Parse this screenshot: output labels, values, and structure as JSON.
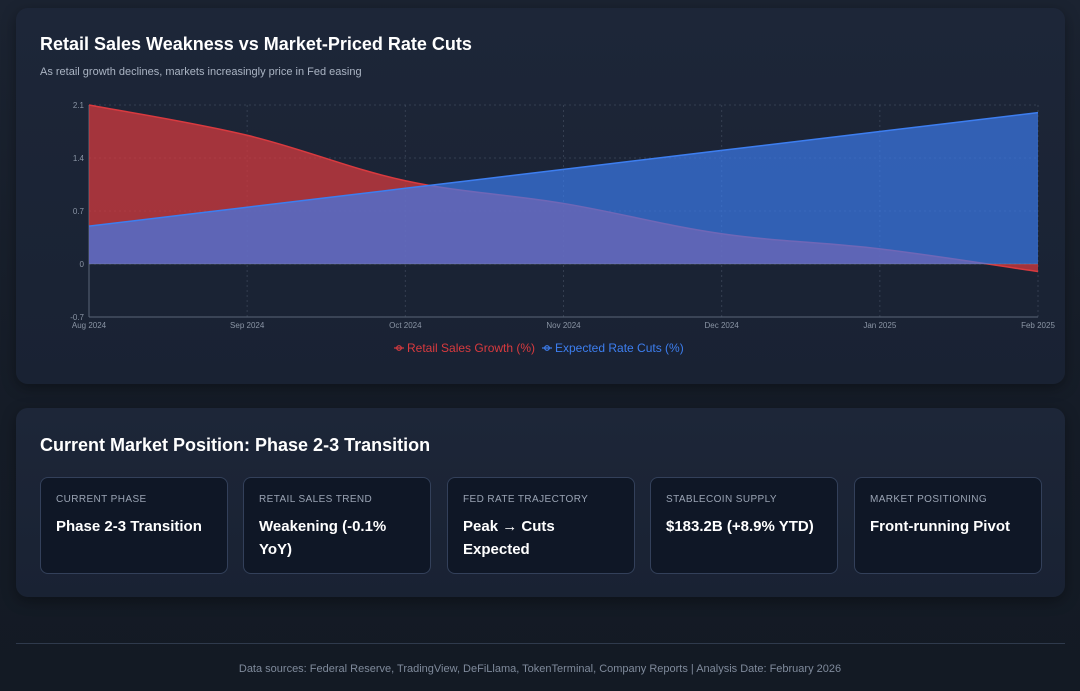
{
  "chart_section": {
    "title": "Retail Sales Weakness vs Market-Priced Rate Cuts",
    "subtitle": "As retail growth declines, markets increasingly price in Fed easing"
  },
  "chart_data": {
    "type": "area",
    "title": "Retail Sales Weakness vs Market-Priced Rate Cuts",
    "subtitle": "As retail growth declines, markets increasingly price in Fed easing",
    "x": [
      "Aug 2024",
      "Sep 2024",
      "Oct 2024",
      "Nov 2024",
      "Dec 2024",
      "Jan 2025",
      "Feb 2025"
    ],
    "y_ticks": [
      "2.1",
      "1.4",
      "0.7",
      "0",
      "-0.7"
    ],
    "ylim": [
      -0.7,
      2.1
    ],
    "grid": true,
    "legend_position": "bottom",
    "series": [
      {
        "name": "Retail Sales Growth (%)",
        "values": [
          2.1,
          1.7,
          1.1,
          0.8,
          0.4,
          0.2,
          -0.1
        ],
        "color": "#d93a3f"
      },
      {
        "name": "Expected Rate Cuts (%)",
        "values": [
          0.5,
          0.75,
          1.0,
          1.25,
          1.5,
          1.75,
          2.0
        ],
        "color": "#3d7ef0"
      }
    ]
  },
  "position_section": {
    "title": "Current Market Position: Phase 2-3 Transition",
    "metrics": [
      {
        "label": "CURRENT PHASE",
        "value": "Phase 2-3 Transition"
      },
      {
        "label": "RETAIL SALES TREND",
        "value": "Weakening (-0.1% YoY)"
      },
      {
        "label": "FED RATE TRAJECTORY",
        "value": "Peak → Cuts Expected"
      },
      {
        "label": "STABLECOIN SUPPLY",
        "value": "$183.2B (+8.9% YTD)"
      },
      {
        "label": "MARKET POSITIONING",
        "value": "Front-running Pivot"
      }
    ]
  },
  "footer": {
    "text": "Data sources: Federal Reserve, TradingView, DeFiLlama, TokenTerminal, Company Reports | Analysis Date: February 2026"
  }
}
